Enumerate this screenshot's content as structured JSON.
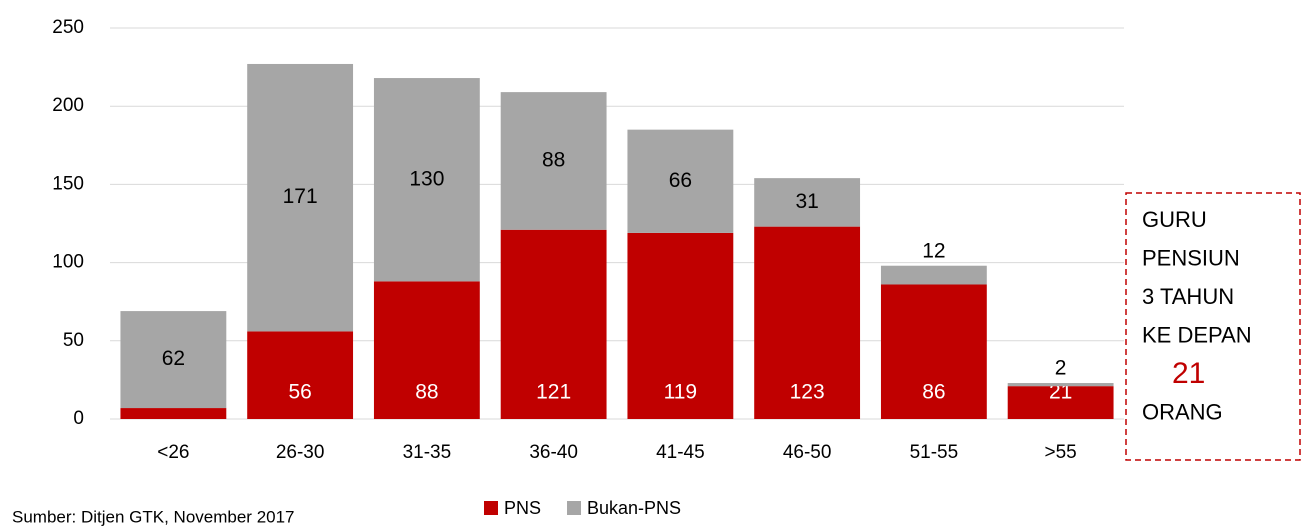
{
  "chart_data": {
    "type": "stacked-bar",
    "categories": [
      "<26",
      "26-30",
      "31-35",
      "36-40",
      "41-45",
      "46-50",
      "51-55",
      ">55"
    ],
    "series": [
      {
        "name": "PNS",
        "color": "#c00000",
        "values": [
          7,
          56,
          88,
          121,
          119,
          123,
          86,
          21
        ]
      },
      {
        "name": "Bukan-PNS",
        "color": "#a6a6a6",
        "values": [
          62,
          171,
          130,
          88,
          66,
          31,
          12,
          2
        ]
      }
    ],
    "ylim": [
      0,
      250
    ],
    "yticks": [
      0,
      50,
      100,
      150,
      200,
      250
    ],
    "grid": true,
    "legend": "bottom",
    "annotation": [
      "GURU",
      "PENSIUN",
      "3 TAHUN",
      "KE DEPAN",
      "21",
      "ORANG"
    ],
    "source": "Sumber: Ditjen GTK, November 2017"
  }
}
